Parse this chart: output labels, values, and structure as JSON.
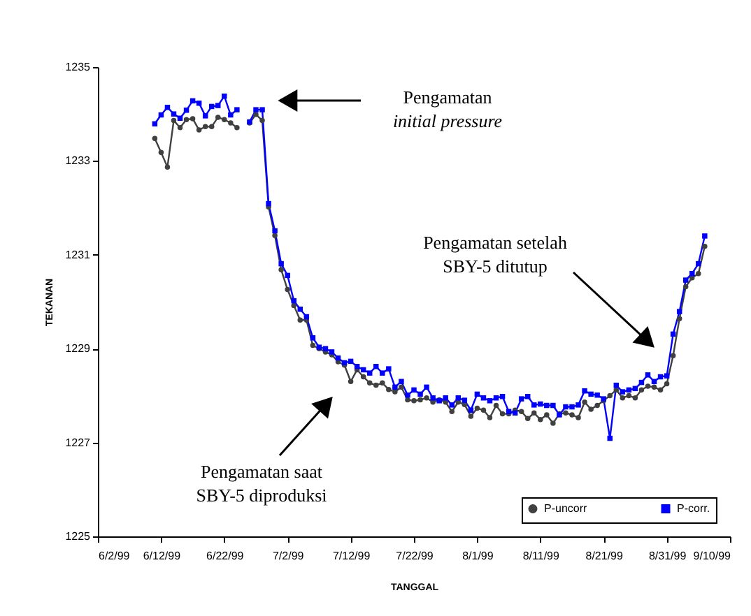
{
  "chart_data": {
    "type": "line",
    "xlabel": "TANGGAL",
    "ylabel": "TEKANAN",
    "x": [
      "1999-06-11",
      "1999-06-12",
      "1999-06-13",
      "1999-06-14",
      "1999-06-15",
      "1999-06-16",
      "1999-06-17",
      "1999-06-18",
      "1999-06-19",
      "1999-06-20",
      "1999-06-21",
      "1999-06-22",
      "1999-06-23",
      "1999-06-24",
      "1999-06-25",
      "1999-06-26",
      "1999-06-27",
      "1999-06-28",
      "1999-06-29",
      "1999-06-30",
      "1999-07-01",
      "1999-07-02",
      "1999-07-03",
      "1999-07-04",
      "1999-07-05",
      "1999-07-06",
      "1999-07-07",
      "1999-07-08",
      "1999-07-09",
      "1999-07-10",
      "1999-07-11",
      "1999-07-12",
      "1999-07-13",
      "1999-07-14",
      "1999-07-15",
      "1999-07-16",
      "1999-07-17",
      "1999-07-18",
      "1999-07-19",
      "1999-07-20",
      "1999-07-21",
      "1999-07-22",
      "1999-07-23",
      "1999-07-24",
      "1999-07-25",
      "1999-07-26",
      "1999-07-27",
      "1999-07-28",
      "1999-07-29",
      "1999-07-30",
      "1999-07-31",
      "1999-08-01",
      "1999-08-02",
      "1999-08-03",
      "1999-08-04",
      "1999-08-05",
      "1999-08-06",
      "1999-08-07",
      "1999-08-08",
      "1999-08-09",
      "1999-08-10",
      "1999-08-11",
      "1999-08-12",
      "1999-08-13",
      "1999-08-14",
      "1999-08-15",
      "1999-08-16",
      "1999-08-17",
      "1999-08-18",
      "1999-08-19",
      "1999-08-20",
      "1999-08-21",
      "1999-08-22",
      "1999-08-23",
      "1999-08-24",
      "1999-08-25",
      "1999-08-26",
      "1999-08-27",
      "1999-08-28",
      "1999-08-29",
      "1999-08-30",
      "1999-08-31",
      "1999-09-01",
      "1999-09-02",
      "1999-09-03",
      "1999-09-04",
      "1999-09-05",
      "1999-09-06"
    ],
    "series": [
      {
        "name": "P-uncorr",
        "color": "#404040",
        "marker": "circle",
        "values": [
          1233.48,
          1233.18,
          1232.87,
          1233.86,
          1233.71,
          1233.88,
          1233.9,
          1233.66,
          1233.73,
          1233.73,
          1233.93,
          1233.88,
          1233.81,
          1233.71,
          null,
          1233.81,
          1233.99,
          1233.86,
          1232.02,
          1231.41,
          1230.68,
          1230.26,
          1229.92,
          1229.61,
          1229.61,
          1229.07,
          1229.0,
          1228.93,
          1228.87,
          1228.72,
          1228.65,
          1228.3,
          1228.55,
          1228.4,
          1228.27,
          1228.22,
          1228.27,
          1228.13,
          1228.08,
          1228.18,
          1227.91,
          1227.89,
          1227.91,
          1227.95,
          1227.86,
          1227.91,
          1227.86,
          1227.66,
          1227.86,
          1227.81,
          1227.56,
          1227.73,
          1227.69,
          1227.53,
          1227.79,
          1227.61,
          1227.61,
          1227.69,
          1227.66,
          1227.51,
          1227.63,
          1227.49,
          1227.59,
          1227.41,
          1227.61,
          1227.63,
          1227.59,
          1227.53,
          1227.86,
          1227.71,
          1227.79,
          1227.89,
          1228.0,
          1228.12,
          1227.95,
          1228.0,
          1227.95,
          1228.12,
          1228.2,
          1228.18,
          1228.12,
          1228.25,
          1228.85,
          1229.64,
          1230.32,
          1230.51,
          1230.6,
          1231.18
        ]
      },
      {
        "name": "P-corr.",
        "color": "#0000ff",
        "marker": "square",
        "values": [
          1233.79,
          1233.98,
          1234.14,
          1234.0,
          1233.91,
          1234.08,
          1234.28,
          1234.23,
          1233.96,
          1234.16,
          1234.18,
          1234.38,
          1233.98,
          1234.09,
          null,
          1233.83,
          1234.09,
          1234.09,
          1232.09,
          1231.51,
          1230.81,
          1230.56,
          1230.02,
          1229.84,
          1229.68,
          1229.23,
          1229.03,
          1229.0,
          1228.93,
          1228.8,
          1228.7,
          1228.73,
          1228.62,
          1228.55,
          1228.48,
          1228.62,
          1228.48,
          1228.57,
          1228.18,
          1228.3,
          1228.01,
          1228.12,
          1228.03,
          1228.18,
          1227.95,
          1227.89,
          1227.95,
          1227.8,
          1227.95,
          1227.9,
          1227.69,
          1228.03,
          1227.95,
          1227.89,
          1227.95,
          1227.98,
          1227.66,
          1227.63,
          1227.93,
          1227.98,
          1227.8,
          1227.82,
          1227.79,
          1227.79,
          1227.59,
          1227.76,
          1227.76,
          1227.8,
          1228.1,
          1228.03,
          1228.01,
          1227.93,
          1227.09,
          1228.22,
          1228.08,
          1228.12,
          1228.15,
          1228.28,
          1228.44,
          1228.3,
          1228.4,
          1228.42,
          1229.31,
          1229.79,
          1230.46,
          1230.6,
          1230.81,
          1231.4
        ]
      }
    ],
    "xlim": [
      "1999-06-02",
      "1999-09-10"
    ],
    "xticks": [
      {
        "value": "1999-06-02",
        "label": "6/2/99"
      },
      {
        "value": "1999-06-12",
        "label": "6/12/99"
      },
      {
        "value": "1999-06-22",
        "label": "6/22/99"
      },
      {
        "value": "1999-07-02",
        "label": "7/2/99"
      },
      {
        "value": "1999-07-12",
        "label": "7/12/99"
      },
      {
        "value": "1999-07-22",
        "label": "7/22/99"
      },
      {
        "value": "1999-08-01",
        "label": "8/1/99"
      },
      {
        "value": "1999-08-11",
        "label": "8/11/99"
      },
      {
        "value": "1999-08-21",
        "label": "8/21/99"
      },
      {
        "value": "1999-08-31",
        "label": "8/31/99"
      },
      {
        "value": "1999-09-10",
        "label": "9/10/99"
      }
    ],
    "ylim": [
      1225,
      1235
    ],
    "yticks": [
      1225,
      1227,
      1229,
      1231,
      1233,
      1235
    ],
    "grid": false,
    "legend": "bottom right",
    "line_style": "solid",
    "annotations": [
      "Pengamatan\ninitial pressure",
      "Pengamatan saat\nSBY-5 diproduksi",
      "Pengamatan setelah\nSBY-5 ditutup"
    ]
  }
}
